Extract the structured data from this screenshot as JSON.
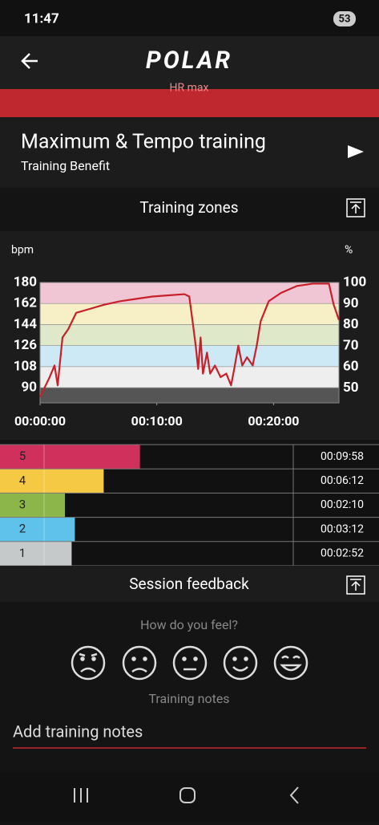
{
  "status_bar": {
    "time": "11:47",
    "battery": "53"
  },
  "header": {
    "logo": "POLAR"
  },
  "banner": {
    "text": "HR max"
  },
  "training": {
    "title": "Maximum & Tempo training",
    "subtitle": "Training Benefit"
  },
  "zones_section": {
    "title": "Training zones"
  },
  "chart_data": {
    "type": "line",
    "ylabel": "bpm",
    "y2label": "%",
    "x": [
      0,
      0.34,
      0.82,
      1.24,
      1.51,
      1.92,
      2.41,
      3.09,
      4.12,
      5.5,
      6.87,
      8.25,
      9.62,
      11.0,
      12.37,
      12.78,
      13.06,
      13.33,
      13.54,
      13.75,
      13.95,
      14.3,
      14.57,
      14.98,
      15.46,
      15.95,
      16.36,
      16.63,
      16.98,
      17.32,
      17.73,
      18.21,
      18.56,
      18.9,
      19.59,
      20.62,
      21.99,
      23.37,
      24.74,
      25.15,
      25.6
    ],
    "series": [
      {
        "color": "#c8202a",
        "values": [
          82,
          89,
          99,
          109,
          92,
          133,
          140,
          154,
          157,
          161,
          164,
          166,
          168,
          169,
          170,
          168,
          147,
          126,
          106,
          133,
          102,
          120,
          102,
          109,
          99,
          102,
          92,
          106,
          126,
          109,
          116,
          109,
          126,
          147,
          164,
          171,
          177,
          179,
          179,
          161,
          148
        ]
      }
    ],
    "xlim": [
      0,
      25.6
    ],
    "xticks": [
      {
        "value": 0,
        "label": "00:00:00"
      },
      {
        "value": 10,
        "label": "00:10:00"
      },
      {
        "value": 20,
        "label": "00:20:00"
      }
    ],
    "ylim": [
      77,
      180
    ],
    "yticks": [
      90,
      108,
      126,
      144,
      162,
      180
    ],
    "y2lim": [
      43,
      100
    ],
    "y2ticks": [
      50,
      60,
      70,
      80,
      90,
      100
    ],
    "zone_bands": [
      {
        "from": 77,
        "to": 90,
        "color": "#555555"
      },
      {
        "from": 90,
        "to": 108,
        "color": "#eeeeee"
      },
      {
        "from": 108,
        "to": 126,
        "color": "#cde9f5"
      },
      {
        "from": 126,
        "to": 144,
        "color": "#dfe8c8"
      },
      {
        "from": 144,
        "to": 162,
        "color": "#f7efc6"
      },
      {
        "from": 162,
        "to": 180,
        "color": "#f0c6d4"
      }
    ]
  },
  "zone_bars": [
    {
      "zone": "5",
      "color": "#d0305c",
      "seconds": 598,
      "duration": "00:09:58"
    },
    {
      "zone": "4",
      "color": "#f6c945",
      "seconds": 372,
      "duration": "00:06:12"
    },
    {
      "zone": "3",
      "color": "#8db64a",
      "seconds": 130,
      "duration": "00:02:10"
    },
    {
      "zone": "2",
      "color": "#5fc2ea",
      "seconds": 192,
      "duration": "00:03:12"
    },
    {
      "zone": "1",
      "color": "#c5c9c9",
      "seconds": 172,
      "duration": "00:02:52"
    }
  ],
  "feedback": {
    "title": "Session feedback",
    "question": "How do you feel?",
    "notes_label": "Training notes",
    "notes_placeholder": "Add training notes"
  }
}
